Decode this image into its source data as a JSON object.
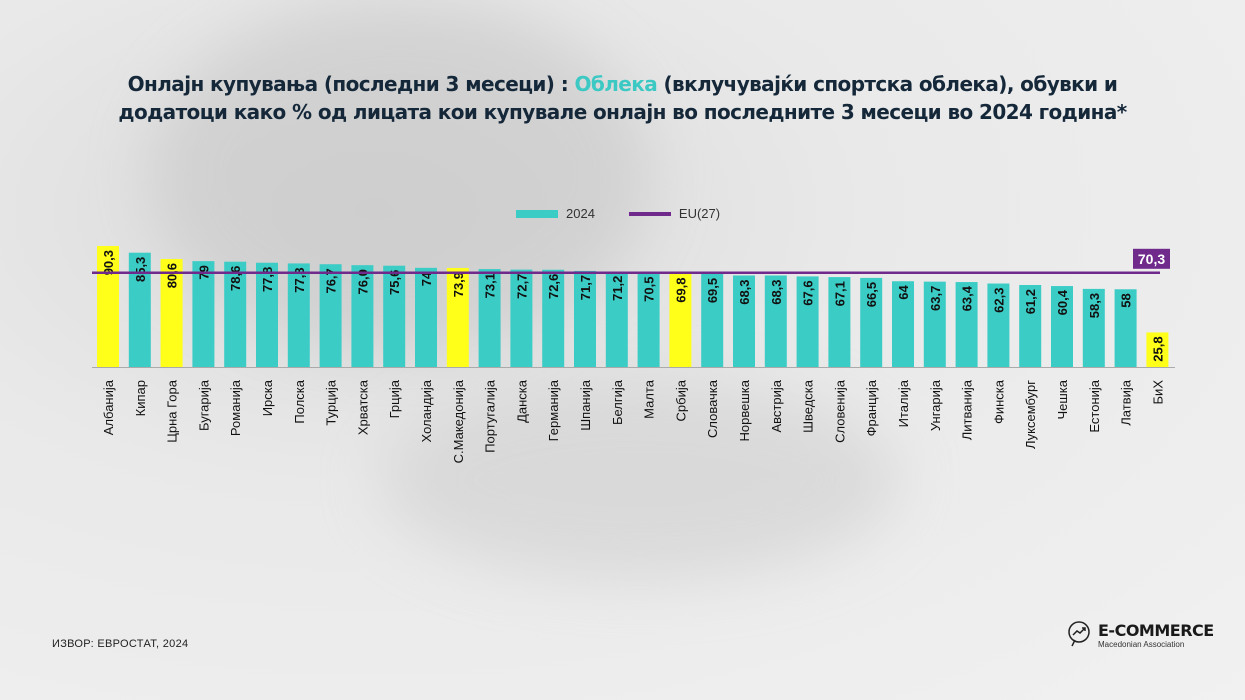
{
  "title": {
    "line1_pre": "Онлајн купувања (последни 3 месеци) : ",
    "line1_highlight": "Облека",
    "line1_post": " (вклучувајќи спортска облека), обувки и",
    "line2": "додатоци како % од лицата кои купувале онлајн во последните 3 месеци во 2024 година*"
  },
  "source": "ИЗВОР: ЕВРОСТАТ, 2024",
  "logo": {
    "name": "E-COMMERCE",
    "subtitle": "Macedonian Association"
  },
  "colors": {
    "bar": "#3cccc6",
    "highlight": "#ffff1a",
    "eu_line": "#6f2a8c",
    "title": "#15283a",
    "title_highlight": "#3cc9c4"
  },
  "chart_data": {
    "type": "bar",
    "legend": [
      {
        "name": "2024",
        "type": "bar"
      },
      {
        "name": "EU(27)",
        "type": "line"
      }
    ],
    "legend_placement": "top-center",
    "categories": [
      "Албанија",
      "Кипар",
      "Црна Гора",
      "Бугарија",
      "Романија",
      "Ирска",
      "Полска",
      "Турција",
      "Хрватска",
      "Грција",
      "Холандија",
      "С.Македонија",
      "Португалија",
      "Данска",
      "Германија",
      "Шпанија",
      "Белгија",
      "Малта",
      "Србија",
      "Словачка",
      "Норвешка",
      "Австрија",
      "Шведска",
      "Словенија",
      "Франција",
      "Италија",
      "Унгарија",
      "Литванија",
      "Финска",
      "Луксембург",
      "Чешка",
      "Естонија",
      "Латвија",
      "БиХ"
    ],
    "values": [
      90.3,
      85.3,
      80.6,
      79,
      78.6,
      77.8,
      77.3,
      76.7,
      76.0,
      75.6,
      74,
      73.9,
      73.1,
      72.7,
      72.6,
      71.7,
      71.2,
      70.5,
      69.8,
      69.5,
      68.3,
      68.3,
      67.6,
      67.1,
      66.5,
      64,
      63.7,
      63.4,
      62.3,
      61.2,
      60.4,
      58.3,
      58,
      25.8
    ],
    "value_labels": [
      "90,3",
      "85,3",
      "80,6",
      "79",
      "78,6",
      "77,8",
      "77,3",
      "76,7",
      "76,0",
      "75,6",
      "74",
      "73,9",
      "73,1",
      "72,7",
      "72,6",
      "71,7",
      "71,2",
      "70,5",
      "69,8",
      "69,5",
      "68,3",
      "68,3",
      "67,6",
      "67,1",
      "66,5",
      "64",
      "63,7",
      "63,4",
      "62,3",
      "61,2",
      "60,4",
      "58,3",
      "58",
      "25,8"
    ],
    "highlighted": [
      "Албанија",
      "Црна Гора",
      "С.Македонија",
      "Србија",
      "БиХ"
    ],
    "eu_value": 70.3,
    "eu_label": "70,3",
    "ylim": [
      0,
      92
    ],
    "grid": false
  }
}
